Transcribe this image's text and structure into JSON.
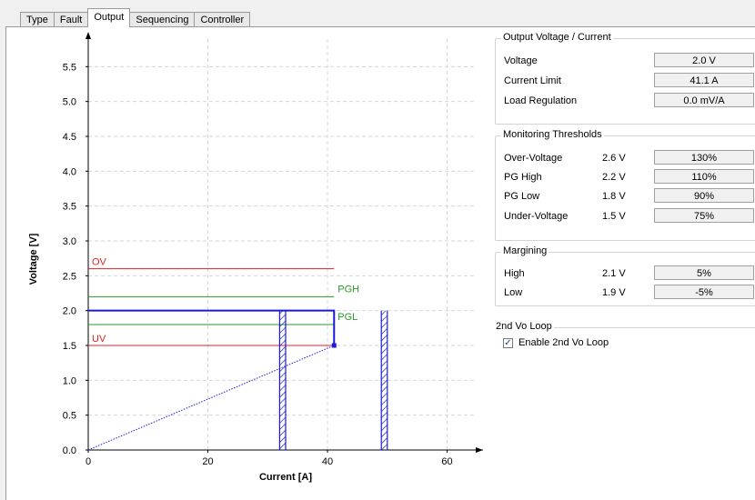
{
  "tabs": [
    {
      "label": "Type"
    },
    {
      "label": "Fault"
    },
    {
      "label": "Output"
    },
    {
      "label": "Sequencing"
    },
    {
      "label": "Controller"
    }
  ],
  "output_vc": {
    "title": "Output Voltage / Current",
    "rows": [
      {
        "label": "Voltage",
        "value": "2.0 V"
      },
      {
        "label": "Current Limit",
        "value": "41.1 A"
      },
      {
        "label": "Load Regulation",
        "value": "0.0 mV/A"
      }
    ]
  },
  "monitoring": {
    "title": "Monitoring Thresholds",
    "rows": [
      {
        "label": "Over-Voltage",
        "volt": "2.6 V",
        "value": "130%"
      },
      {
        "label": "PG High",
        "volt": "2.2 V",
        "value": "110%"
      },
      {
        "label": "PG Low",
        "volt": "1.8 V",
        "value": "90%"
      },
      {
        "label": "Under-Voltage",
        "volt": "1.5 V",
        "value": "75%"
      }
    ]
  },
  "margining": {
    "title": "Margining",
    "rows": [
      {
        "label": "High",
        "volt": "2.1 V",
        "value": "5%"
      },
      {
        "label": "Low",
        "volt": "1.9 V",
        "value": "-5%"
      }
    ]
  },
  "loop": {
    "title": "2nd Vo Loop",
    "checkbox_label": "Enable 2nd Vo Loop",
    "checked": true
  },
  "chart_data": {
    "type": "line",
    "xlabel": "Current [A]",
    "ylabel": "Voltage [V]",
    "xlim": [
      0,
      66
    ],
    "ylim": [
      0,
      6
    ],
    "x_ticks": [
      "0",
      "20",
      "40",
      "60"
    ],
    "y_ticks": [
      "0.0",
      "0.5",
      "1.0",
      "1.5",
      "2.0",
      "2.5",
      "3.0",
      "3.5",
      "4.0",
      "4.5",
      "5.0",
      "5.5"
    ],
    "grid": true,
    "thresholds": [
      {
        "name": "OV",
        "y": 2.6,
        "x_end": 41.1,
        "color": "#e02020"
      },
      {
        "name": "PGH",
        "y": 2.2,
        "x_end": 41.1,
        "color": "#2a9a2a"
      },
      {
        "name": "PGL",
        "y": 1.8,
        "x_end": 41.1,
        "color": "#2a9a2a"
      },
      {
        "name": "UV",
        "y": 1.5,
        "x_end": 41.1,
        "color": "#e02020"
      }
    ],
    "output_line": {
      "points": [
        [
          0,
          2.0
        ],
        [
          41.1,
          2.0
        ],
        [
          41.1,
          1.5
        ]
      ],
      "color": "#1a1adc"
    },
    "load_line": {
      "points": [
        [
          0,
          0
        ],
        [
          41.1,
          1.5
        ]
      ],
      "color": "#1a1adc"
    },
    "hatched_regions": [
      {
        "x_start": 32.0,
        "x_end": 33.0,
        "y_top": 2.0
      },
      {
        "x_start": 49.0,
        "x_end": 50.0,
        "y_top": 2.0
      }
    ]
  }
}
